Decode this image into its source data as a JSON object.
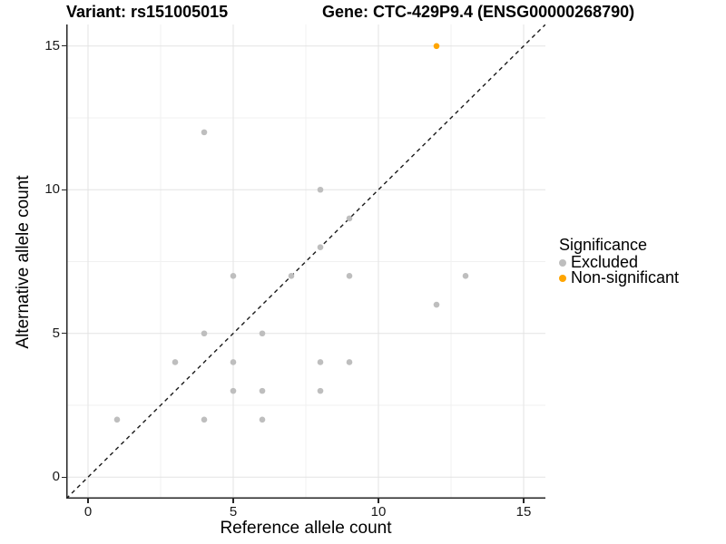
{
  "chart_data": {
    "type": "scatter",
    "title_left": "Variant: rs151005015",
    "title_right": "Gene: CTC-429P9.4 (ENSG00000268790)",
    "xlabel": "Reference allele count",
    "ylabel": "Alternative allele count",
    "xlim": [
      -0.75,
      15.75
    ],
    "ylim": [
      -0.75,
      15.75
    ],
    "xticks": [
      0,
      5,
      10,
      15
    ],
    "yticks": [
      0,
      5,
      10,
      15
    ],
    "minor_xticks": [
      2.5,
      7.5,
      12.5
    ],
    "minor_yticks": [
      2.5,
      7.5,
      12.5
    ],
    "grid": "major+minor",
    "legend_title": "Significance",
    "legend_position": "right",
    "identity_line": {
      "type": "y=x",
      "style": "dashed",
      "color": "#1a1a1a"
    },
    "colors": {
      "major_grid": "#e3e3e3",
      "minor_grid": "#f1f1f1",
      "axis_line": "#262626",
      "excluded": "#bebebe",
      "non_significant": "#ffa500"
    },
    "series": [
      {
        "name": "Excluded",
        "color": "#bebebe",
        "points": [
          [
            1,
            2
          ],
          [
            3,
            4
          ],
          [
            4,
            2
          ],
          [
            4,
            5
          ],
          [
            4,
            12
          ],
          [
            5,
            3
          ],
          [
            5,
            4
          ],
          [
            5,
            7
          ],
          [
            6,
            2
          ],
          [
            6,
            3
          ],
          [
            6,
            5
          ],
          [
            7,
            7
          ],
          [
            8,
            3
          ],
          [
            8,
            4
          ],
          [
            8,
            8
          ],
          [
            8,
            10
          ],
          [
            9,
            4
          ],
          [
            9,
            7
          ],
          [
            9,
            9
          ],
          [
            12,
            6
          ],
          [
            13,
            7
          ]
        ]
      },
      {
        "name": "Non-significant",
        "color": "#ffa500",
        "points": [
          [
            12,
            15
          ]
        ]
      }
    ]
  }
}
